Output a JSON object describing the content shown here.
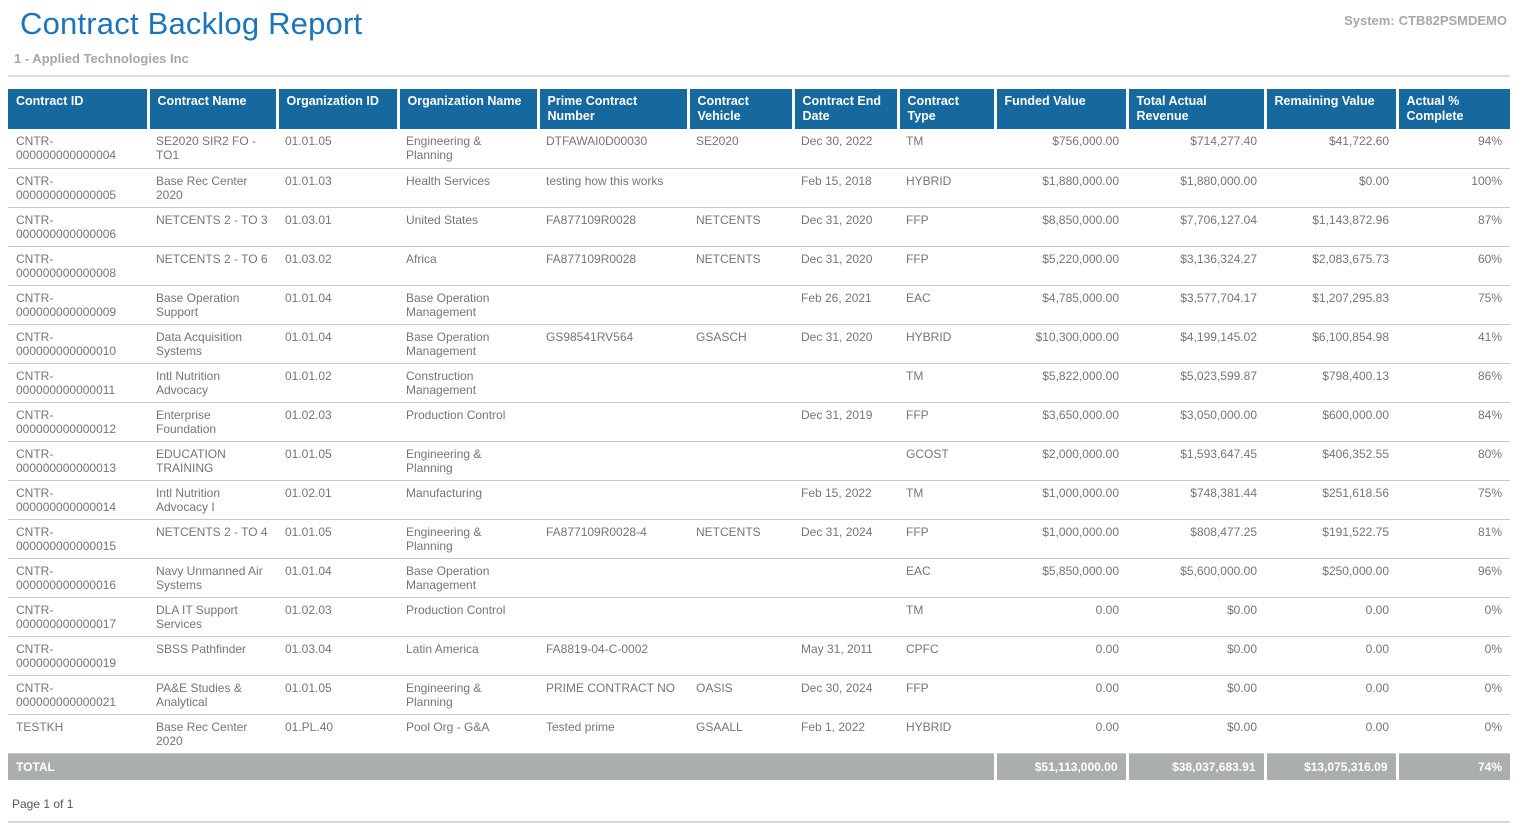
{
  "header": {
    "title": "Contract Backlog Report",
    "system_label": "System:",
    "system_value": "CTB82PSMDEMO",
    "subtitle": "1 - Applied Technologies Inc"
  },
  "table": {
    "columns": [
      "Contract ID",
      "Contract Name",
      "Organization ID",
      "Organization Name",
      "Prime Contract Number",
      "Contract Vehicle",
      "Contract End Date",
      "Contract Type",
      "Funded Value",
      "Total Actual Revenue",
      "Remaining Value",
      "Actual % Complete"
    ],
    "rows": [
      [
        "CNTR-000000000000004",
        "SE2020 SIR2 FO - TO1",
        "01.01.05",
        "Engineering & Planning",
        "DTFAWAI0D00030",
        "SE2020",
        "Dec 30, 2022",
        "TM",
        "$756,000.00",
        "$714,277.40",
        "$41,722.60",
        "94%"
      ],
      [
        "CNTR-000000000000005",
        "Base Rec Center 2020",
        "01.01.03",
        "Health Services",
        "testing how this works",
        "",
        "Feb 15, 2018",
        "HYBRID",
        "$1,880,000.00",
        "$1,880,000.00",
        "$0.00",
        "100%"
      ],
      [
        "CNTR-000000000000006",
        "NETCENTS 2 - TO 3",
        "01.03.01",
        "United States",
        "FA877109R0028",
        "NETCENTS",
        "Dec 31, 2020",
        "FFP",
        "$8,850,000.00",
        "$7,706,127.04",
        "$1,143,872.96",
        "87%"
      ],
      [
        "CNTR-000000000000008",
        "NETCENTS 2 - TO 6",
        "01.03.02",
        "Africa",
        "FA877109R0028",
        "NETCENTS",
        "Dec 31, 2020",
        "FFP",
        "$5,220,000.00",
        "$3,136,324.27",
        "$2,083,675.73",
        "60%"
      ],
      [
        "CNTR-000000000000009",
        "Base Operation Support",
        "01.01.04",
        "Base Operation Management",
        "",
        "",
        "Feb 26, 2021",
        "EAC",
        "$4,785,000.00",
        "$3,577,704.17",
        "$1,207,295.83",
        "75%"
      ],
      [
        "CNTR-000000000000010",
        "Data Acquisition Systems",
        "01.01.04",
        "Base Operation Management",
        "GS98541RV564",
        "GSASCH",
        "Dec 31, 2020",
        "HYBRID",
        "$10,300,000.00",
        "$4,199,145.02",
        "$6,100,854.98",
        "41%"
      ],
      [
        "CNTR-000000000000011",
        "Intl Nutrition Advocacy",
        "01.01.02",
        "Construction Management",
        "",
        "",
        "",
        "TM",
        "$5,822,000.00",
        "$5,023,599.87",
        "$798,400.13",
        "86%"
      ],
      [
        "CNTR-000000000000012",
        "Enterprise Foundation",
        "01.02.03",
        "Production Control",
        "",
        "",
        "Dec 31, 2019",
        "FFP",
        "$3,650,000.00",
        "$3,050,000.00",
        "$600,000.00",
        "84%"
      ],
      [
        "CNTR-000000000000013",
        "EDUCATION TRAINING",
        "01.01.05",
        "Engineering & Planning",
        "",
        "",
        "",
        "GCOST",
        "$2,000,000.00",
        "$1,593,647.45",
        "$406,352.55",
        "80%"
      ],
      [
        "CNTR-000000000000014",
        "Intl Nutrition Advocacy I",
        "01.02.01",
        "Manufacturing",
        "",
        "",
        "Feb 15, 2022",
        "TM",
        "$1,000,000.00",
        "$748,381.44",
        "$251,618.56",
        "75%"
      ],
      [
        "CNTR-000000000000015",
        "NETCENTS 2 - TO 4",
        "01.01.05",
        "Engineering & Planning",
        "FA877109R0028-4",
        "NETCENTS",
        "Dec 31, 2024",
        "FFP",
        "$1,000,000.00",
        "$808,477.25",
        "$191,522.75",
        "81%"
      ],
      [
        "CNTR-000000000000016",
        "Navy Unmanned Air Systems",
        "01.01.04",
        "Base Operation Management",
        "",
        "",
        "",
        "EAC",
        "$5,850,000.00",
        "$5,600,000.00",
        "$250,000.00",
        "96%"
      ],
      [
        "CNTR-000000000000017",
        "DLA IT Support Services",
        "01.02.03",
        "Production Control",
        "",
        "",
        "",
        "TM",
        "0.00",
        "$0.00",
        "0.00",
        "0%"
      ],
      [
        "CNTR-000000000000019",
        "SBSS Pathfinder",
        "01.03.04",
        "Latin America",
        "FA8819-04-C-0002",
        "",
        "May 31, 2011",
        "CPFC",
        "0.00",
        "$0.00",
        "0.00",
        "0%"
      ],
      [
        "CNTR-000000000000021",
        "PA&E Studies & Analytical",
        "01.01.05",
        "Engineering & Planning",
        "PRIME CONTRACT NO",
        "OASIS",
        "Dec 30, 2024",
        "FFP",
        "0.00",
        "$0.00",
        "0.00",
        "0%"
      ],
      [
        "TESTKH",
        "Base Rec Center 2020",
        "01.PL.40",
        "Pool Org - G&A",
        "Tested prime",
        "GSAALL",
        "Feb 1, 2022",
        "HYBRID",
        "0.00",
        "$0.00",
        "0.00",
        "0%"
      ]
    ],
    "total": {
      "label": "TOTAL",
      "funded_value": "$51,113,000.00",
      "total_actual_revenue": "$38,037,683.91",
      "remaining_value": "$13,075,316.09",
      "actual_percent_complete": "74%"
    }
  },
  "footer": {
    "page_text": "Page 1 of 1"
  },
  "colors": {
    "title_blue": "#1C75BB",
    "header_blue": "#16699E",
    "total_gray": "#ABAFAB"
  }
}
